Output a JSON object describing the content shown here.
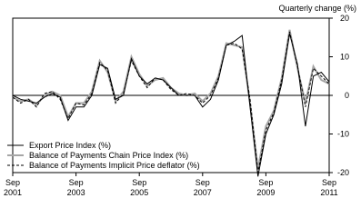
{
  "chart_data": {
    "type": "line",
    "y_axis_label": "Quarterly change (%)",
    "categories": [
      "Sep 2001",
      null,
      null,
      null,
      null,
      null,
      null,
      null,
      "Sep 2003",
      null,
      null,
      null,
      null,
      null,
      null,
      null,
      "Sep 2005",
      null,
      null,
      null,
      null,
      null,
      null,
      null,
      "Sep 2007",
      null,
      null,
      null,
      null,
      null,
      null,
      null,
      "Sep 2009",
      null,
      null,
      null,
      null,
      null,
      null,
      null,
      "Sep 2011"
    ],
    "series": [
      {
        "name": "Export Price Index (%)",
        "color": "#000000",
        "style": "solid",
        "values": [
          0,
          -1,
          -1.5,
          -2,
          -0.5,
          0.5,
          -0.5,
          -6.5,
          -3,
          -3,
          0,
          8,
          7,
          -1,
          0,
          9.5,
          5,
          3,
          4.5,
          4,
          2,
          0,
          0,
          0,
          -3,
          -1,
          4,
          13,
          14,
          15.5,
          -3,
          -21,
          -10,
          -5,
          3,
          16,
          8,
          -8,
          5,
          6,
          3.5
        ]
      },
      {
        "name": "Balance of Payments Chain Price Index (%)",
        "color": "#a6a6a6",
        "style": "thick",
        "values": [
          -0.5,
          -1.5,
          -1,
          -2.5,
          0,
          1,
          0,
          -5.5,
          -2,
          -2,
          1,
          9,
          6,
          -1.5,
          1,
          10,
          5.5,
          2.5,
          4,
          4.5,
          2,
          0.5,
          0,
          0.5,
          -1.5,
          0.5,
          5,
          13.5,
          13,
          12.5,
          -2,
          -19,
          -8,
          -4,
          4.5,
          17,
          7,
          -2,
          7.5,
          4,
          3
        ]
      },
      {
        "name": "Balance of Payments Implicit Price deflator (%)",
        "color": "#000000",
        "style": "dashed",
        "values": [
          -0.5,
          -2,
          -1,
          -3,
          0.5,
          1,
          -1,
          -6,
          -2,
          -2.5,
          0.5,
          8.5,
          6.5,
          -2,
          0.5,
          9,
          5,
          2,
          4.5,
          4,
          1.5,
          0,
          0.5,
          0,
          -2,
          0,
          4.5,
          13,
          13.5,
          12,
          -1,
          -20,
          -9,
          -4.5,
          4,
          16.5,
          7.5,
          -3,
          7,
          5,
          3
        ]
      }
    ],
    "ylim": [
      -20,
      20
    ],
    "yticks": [
      -20,
      -10,
      0,
      10,
      20
    ],
    "zero_line": true,
    "legend": "lower-left"
  }
}
